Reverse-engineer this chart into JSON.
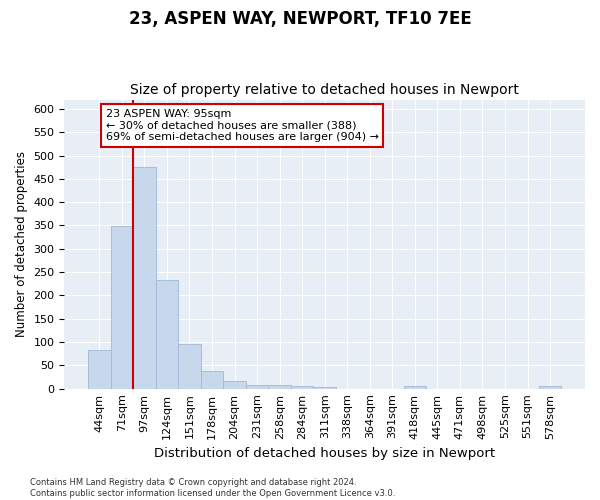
{
  "title": "23, ASPEN WAY, NEWPORT, TF10 7EE",
  "subtitle": "Size of property relative to detached houses in Newport",
  "xlabel": "Distribution of detached houses by size in Newport",
  "ylabel": "Number of detached properties",
  "categories": [
    "44sqm",
    "71sqm",
    "97sqm",
    "124sqm",
    "151sqm",
    "178sqm",
    "204sqm",
    "231sqm",
    "258sqm",
    "284sqm",
    "311sqm",
    "338sqm",
    "364sqm",
    "391sqm",
    "418sqm",
    "445sqm",
    "471sqm",
    "498sqm",
    "525sqm",
    "551sqm",
    "578sqm"
  ],
  "values": [
    82,
    348,
    476,
    234,
    96,
    37,
    16,
    8,
    8,
    5,
    4,
    0,
    0,
    0,
    5,
    0,
    0,
    0,
    0,
    0,
    5
  ],
  "bar_color": "#c8d8ec",
  "bar_edge_color": "#a0b8d8",
  "marker_line_color": "#cc0000",
  "annotation_text": "23 ASPEN WAY: 95sqm\n← 30% of detached houses are smaller (388)\n69% of semi-detached houses are larger (904) →",
  "annotation_box_facecolor": "#ffffff",
  "annotation_box_edgecolor": "#cc0000",
  "ylim": [
    0,
    620
  ],
  "yticks": [
    0,
    50,
    100,
    150,
    200,
    250,
    300,
    350,
    400,
    450,
    500,
    550,
    600
  ],
  "background_color": "#e8eef5",
  "title_fontsize": 12,
  "subtitle_fontsize": 10,
  "xlabel_fontsize": 9.5,
  "ylabel_fontsize": 8.5,
  "tick_fontsize": 8,
  "annotation_fontsize": 8,
  "footer_text": "Contains HM Land Registry data © Crown copyright and database right 2024.\nContains public sector information licensed under the Open Government Licence v3.0."
}
